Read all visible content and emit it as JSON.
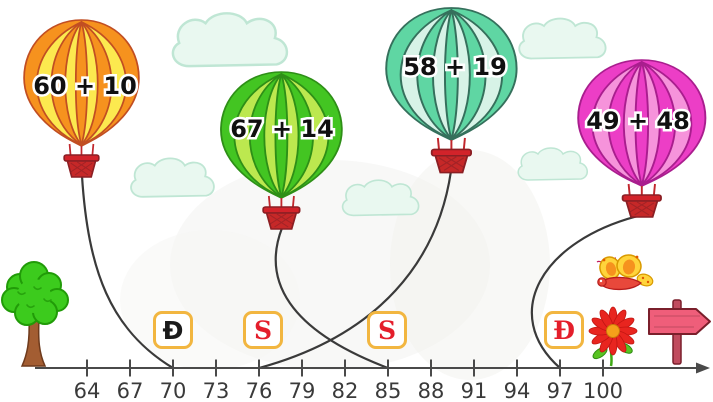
{
  "balloons": [
    {
      "label": "60 + 10",
      "main_color": "#F6921E",
      "stripe_color": "#FCE94F",
      "outline_color": "#C14E22"
    },
    {
      "label": "67 + 14",
      "main_color": "#43C522",
      "stripe_color": "#BCE84F",
      "outline_color": "#2E8F17"
    },
    {
      "label": "58 + 19",
      "main_color": "#5FD6A3",
      "stripe_color": "#D7F3E7",
      "outline_color": "#35705C"
    },
    {
      "label": "49 + 48",
      "main_color": "#EC3EC6",
      "stripe_color": "#F693DB",
      "outline_color": "#A91E8E"
    }
  ],
  "answer_boxes": [
    {
      "letter": "Đ",
      "letter_color": "#1B1B1B",
      "above_tick": "70"
    },
    {
      "letter": "S",
      "letter_color": "#E41E2B",
      "above_tick": "76"
    },
    {
      "letter": "S",
      "letter_color": "#E41E2B",
      "above_tick": "85"
    },
    {
      "letter": "Đ",
      "letter_color": "#E41E2B",
      "above_tick": "97"
    }
  ],
  "answer_box_style": {
    "border_color": "#F2B640"
  },
  "numberline": {
    "ticks": [
      "64",
      "67",
      "70",
      "73",
      "76",
      "79",
      "82",
      "85",
      "88",
      "91",
      "94",
      "97",
      "100"
    ]
  },
  "connections": [
    {
      "expression": "60 + 10",
      "connected_to": "70"
    },
    {
      "expression": "67 + 14",
      "connected_to": "85"
    },
    {
      "expression": "58 + 19",
      "connected_to": "76"
    },
    {
      "expression": "49 + 48",
      "connected_to": "97"
    }
  ],
  "decorations": {
    "items": [
      "tree",
      "clouds",
      "flower",
      "butterfly",
      "signpost"
    ]
  }
}
